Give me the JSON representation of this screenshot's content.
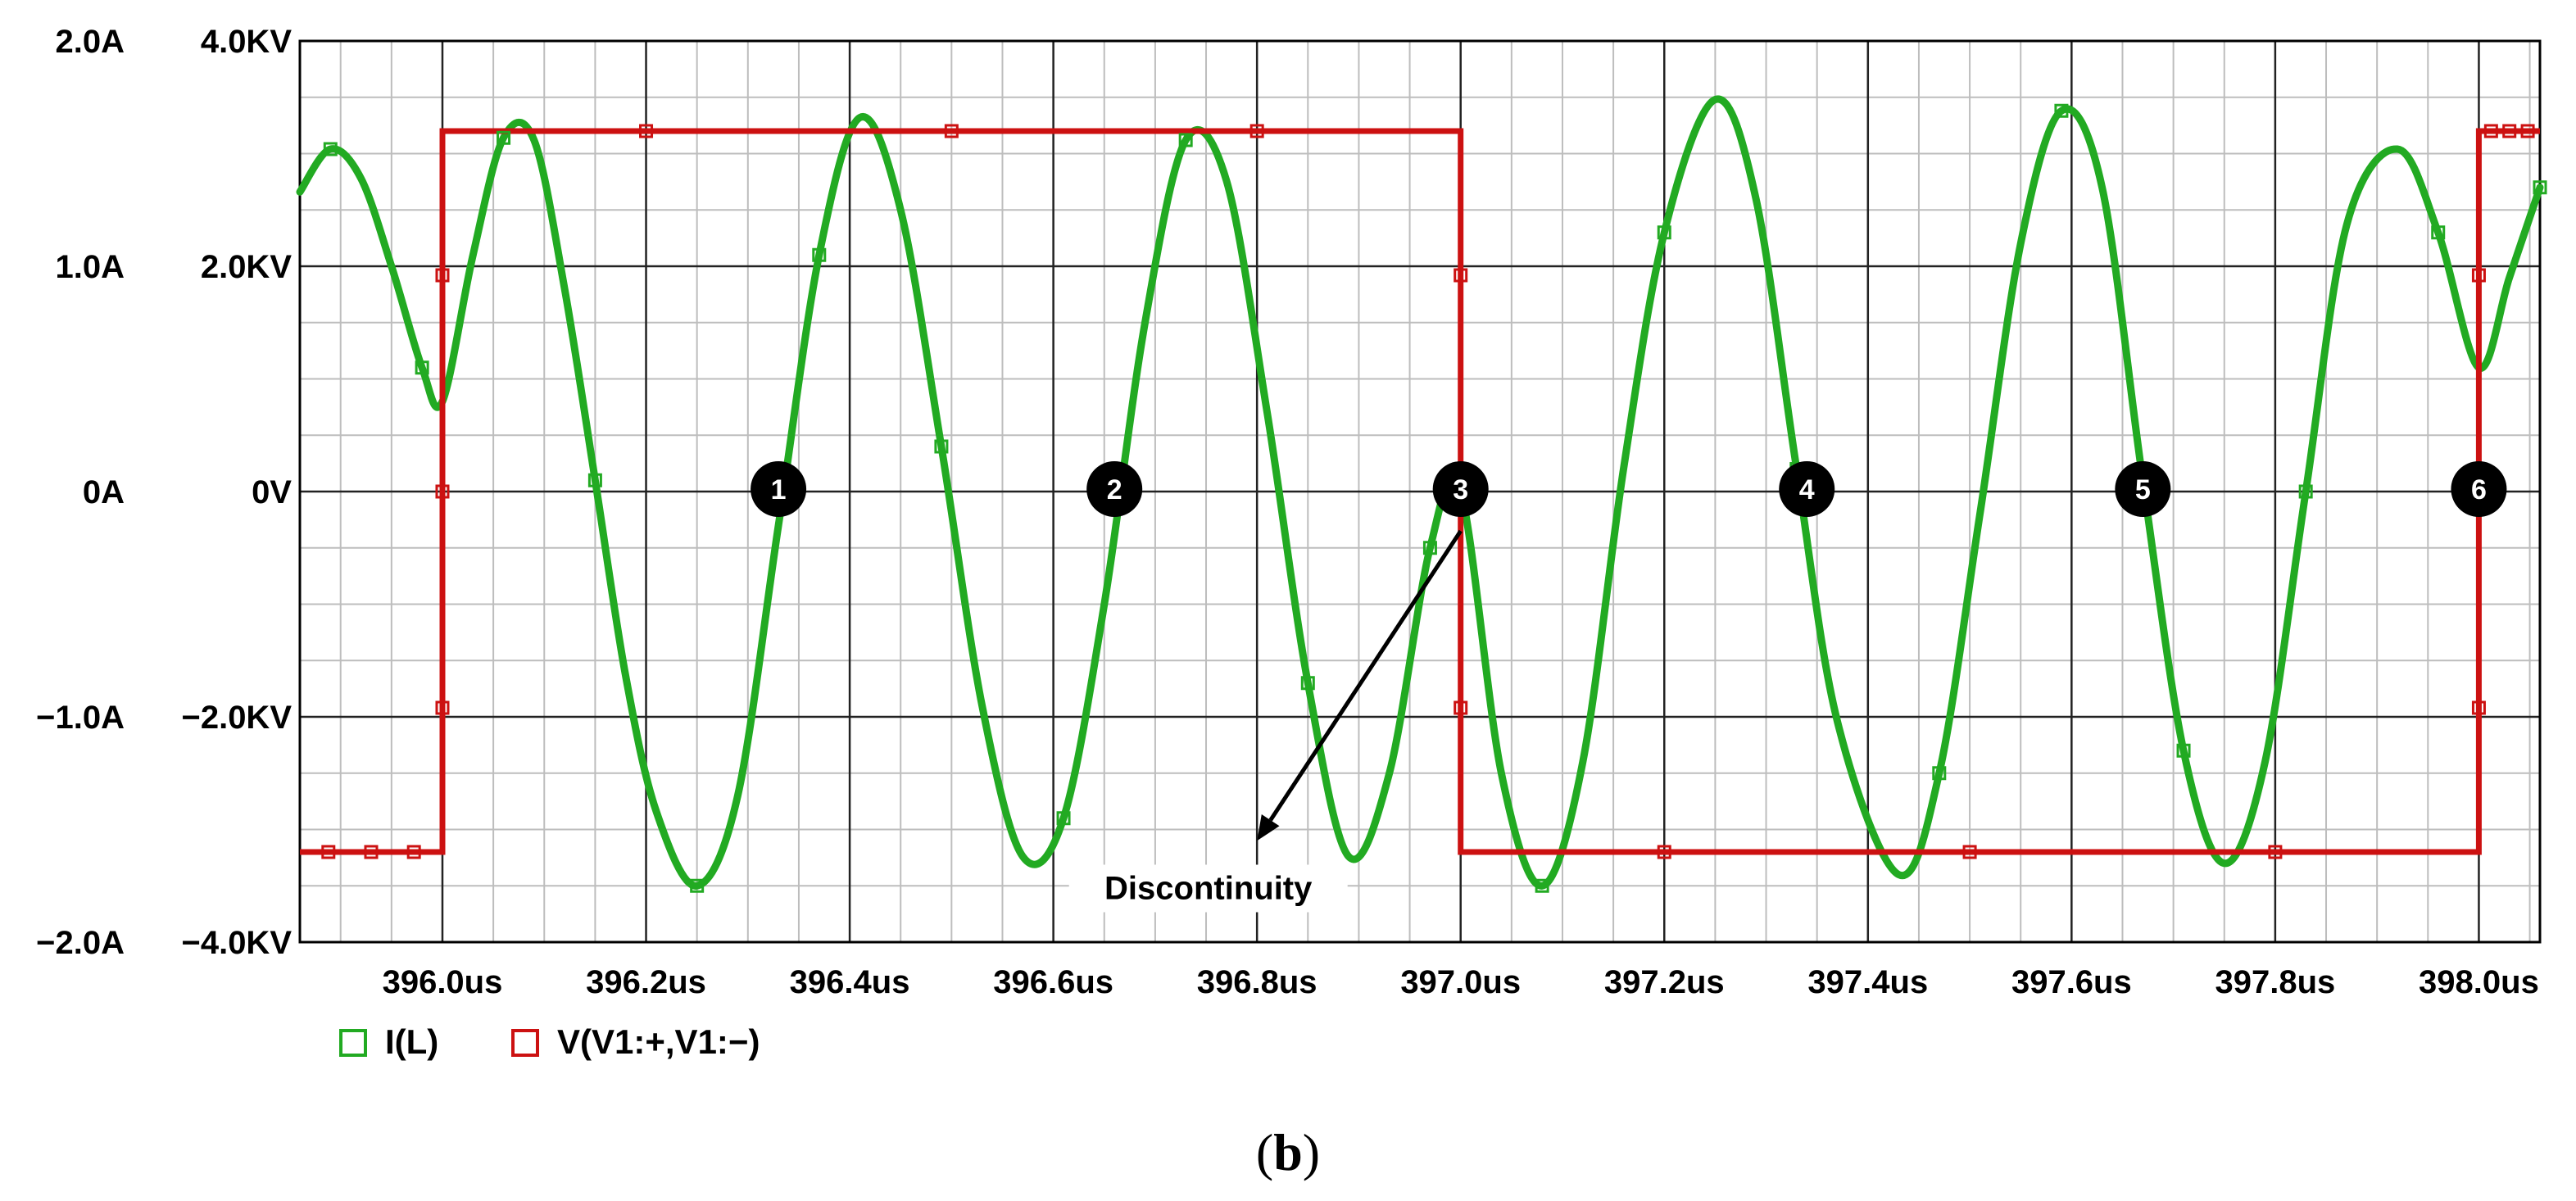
{
  "chart_data": {
    "type": "line",
    "caption": "(b)",
    "caption_parts": {
      "open": "(",
      "letter": "b",
      "close": ")"
    },
    "xlim": [
      395.86,
      398.06
    ],
    "x_unit": "us",
    "x_ticks": [
      396.0,
      396.2,
      396.4,
      396.6,
      396.8,
      397.0,
      397.2,
      397.4,
      397.6,
      397.8,
      398.0
    ],
    "x_tick_labels": [
      "396.0us",
      "396.2us",
      "396.4us",
      "396.6us",
      "396.8us",
      "397.0us",
      "397.2us",
      "397.4us",
      "397.6us",
      "397.8us",
      "398.0us"
    ],
    "left_axis": {
      "ylim": [
        -2.0,
        2.0
      ],
      "ticks": [
        2.0,
        1.0,
        0.0,
        -1.0,
        -2.0
      ],
      "tick_labels": [
        "2.0A",
        "1.0A",
        "0A",
        "−1.0A",
        "−2.0A"
      ]
    },
    "right_axis": {
      "ylim": [
        -4000,
        4000
      ],
      "ticks": [
        4000,
        2000,
        0,
        -2000,
        -4000
      ],
      "tick_labels": [
        "4.0KV",
        "2.0KV",
        "0V",
        "−2.0KV",
        "−4.0KV"
      ]
    },
    "series": [
      {
        "name": "I(L)",
        "axis": "left",
        "color": "#22aa22",
        "x": [
          395.86,
          395.89,
          395.92,
          395.95,
          395.98,
          396.0,
          396.03,
          396.06,
          396.09,
          396.12,
          396.15,
          396.18,
          396.21,
          396.25,
          396.29,
          396.33,
          396.37,
          396.41,
          396.45,
          396.49,
          396.53,
          396.57,
          396.61,
          396.65,
          396.69,
          396.73,
          396.77,
          396.81,
          396.85,
          396.89,
          396.93,
          396.97,
          397.0,
          397.04,
          397.08,
          397.12,
          397.16,
          397.2,
          397.25,
          397.29,
          397.33,
          397.37,
          397.43,
          397.47,
          397.51,
          397.55,
          397.59,
          397.63,
          397.67,
          397.71,
          397.75,
          397.79,
          397.83,
          397.87,
          397.92,
          397.96,
          398.0,
          398.03,
          398.06
        ],
        "y": [
          1.33,
          1.52,
          1.39,
          1.0,
          0.55,
          0.4,
          1.05,
          1.57,
          1.56,
          0.9,
          0.05,
          -0.82,
          -1.42,
          -1.75,
          -1.35,
          -0.15,
          1.05,
          1.66,
          1.25,
          0.2,
          -0.95,
          -1.62,
          -1.45,
          -0.5,
          0.75,
          1.56,
          1.38,
          0.35,
          -0.85,
          -1.62,
          -1.25,
          -0.25,
          0.0,
          -1.25,
          -1.75,
          -1.2,
          0.1,
          1.15,
          1.74,
          1.3,
          0.1,
          -1.02,
          -1.7,
          -1.25,
          -0.1,
          1.1,
          1.69,
          1.35,
          0.05,
          -1.15,
          -1.65,
          -1.2,
          0.0,
          1.18,
          1.52,
          1.15,
          0.55,
          0.95,
          1.35
        ]
      },
      {
        "name": "V(V1:+,V1:−)",
        "axis": "right",
        "color": "#cc1111",
        "x": [
          395.86,
          396.0,
          396.0,
          397.0,
          397.0,
          398.0,
          398.0,
          398.06
        ],
        "y": [
          -3200,
          -3200,
          3200,
          3200,
          -3200,
          -3200,
          3200,
          3200
        ]
      }
    ],
    "cycle_markers": [
      {
        "label": "1",
        "x": 396.33
      },
      {
        "label": "2",
        "x": 396.66
      },
      {
        "label": "3",
        "x": 397.0
      },
      {
        "label": "4",
        "x": 397.34
      },
      {
        "label": "5",
        "x": 397.67
      },
      {
        "label": "6",
        "x": 398.0
      }
    ],
    "annotation": {
      "text": "Discontinuity",
      "arrow_from_x": 397.0,
      "arrow_from_y_kv": -350,
      "arrow_to_x": 396.8,
      "arrow_to_y_kv": -3100
    },
    "legend": {
      "placement": "bottom-left",
      "entries": [
        {
          "label": "I(L)",
          "color": "#22aa22"
        },
        {
          "label": "V(V1:+,V1:−)",
          "color": "#cc1111"
        }
      ]
    },
    "grid": true
  }
}
